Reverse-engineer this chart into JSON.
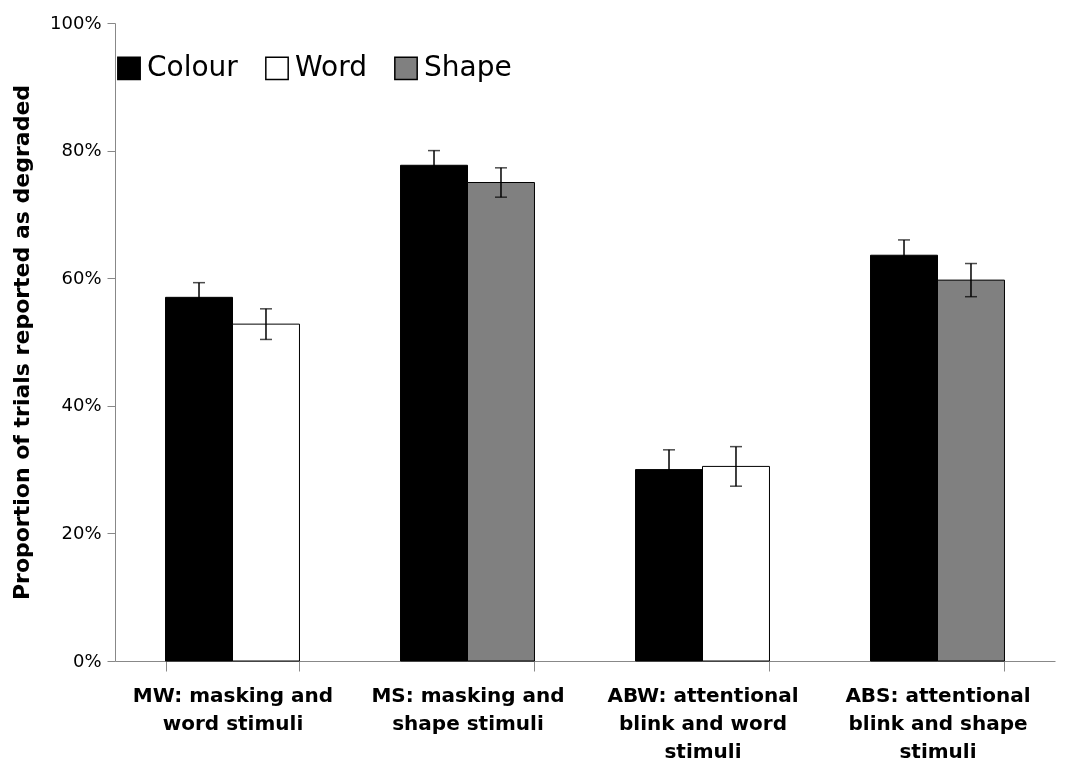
{
  "chart_data": {
    "type": "bar",
    "ylabel": "Proportion of trials reported as degraded",
    "categories": [
      "MW: masking and word stimuli",
      "MS: masking and shape stimuli",
      "ABW: attentional blink and word stimuli",
      "ABS: attentional blink and shape stimuli"
    ],
    "series": [
      {
        "name": "Colour",
        "color": "#000000",
        "values": [
          57,
          77.7,
          30,
          63.6
        ],
        "errors": [
          2.3,
          2.3,
          3.1,
          2.4
        ]
      },
      {
        "name": "Word",
        "color": "#ffffff",
        "values": [
          52.8,
          null,
          30.5,
          null
        ],
        "errors": [
          2.4,
          null,
          3.1,
          null
        ]
      },
      {
        "name": "Shape",
        "color": "#808080",
        "values": [
          null,
          75,
          null,
          59.7
        ],
        "errors": [
          null,
          2.3,
          null,
          2.6
        ]
      }
    ],
    "ylim": [
      0,
      100
    ],
    "yticks": [
      {
        "value": 0,
        "label": "0%"
      },
      {
        "value": 20,
        "label": "20%"
      },
      {
        "value": 40,
        "label": "40%"
      },
      {
        "value": 60,
        "label": "60%"
      },
      {
        "value": 80,
        "label": "80%"
      },
      {
        "value": 100,
        "label": "100%"
      }
    ],
    "grid": false,
    "legend": "top"
  }
}
